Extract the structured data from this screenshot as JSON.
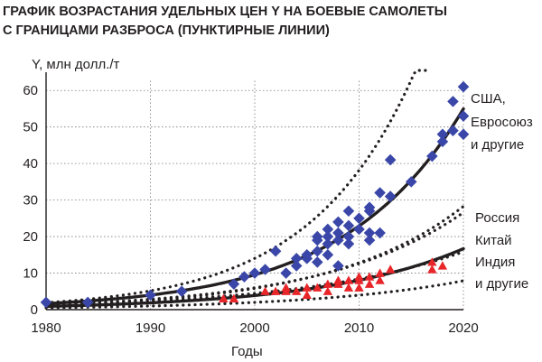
{
  "chart_data": {
    "type": "scatter",
    "title_lines": [
      "ГРАФИК ВОЗРАСТАНИЯ УДЕЛЬНЫХ ЦЕН Y НА БОЕВЫЕ САМОЛЕТЫ",
      "С ГРАНИЦАМИ РАЗБРОСА (ПУНКТИРНЫЕ ЛИНИИ)"
    ],
    "ylabel": "Y, млн долл./т",
    "xlabel": "Годы",
    "xlim": [
      1980,
      2020
    ],
    "ylim": [
      0,
      65
    ],
    "x_ticks": [
      "1980",
      "1990",
      "2000",
      "2010",
      "2020"
    ],
    "y_ticks": [
      "0",
      "10",
      "20",
      "30",
      "40",
      "50",
      "60"
    ],
    "grid": "dotted",
    "legend_placement": "right, next to curves",
    "colors": {
      "western": "#3a47a8",
      "eastern": "#e8262a",
      "curve": "#231f20"
    },
    "groups": [
      {
        "label_lines": [
          "США,",
          "Евросоюз",
          "и другие"
        ],
        "marker": "diamond",
        "color": "#3a47a8",
        "trend": {
          "a": 1.66,
          "b": 0.0875
        },
        "upper_bound": {
          "a": 1.9,
          "b": 0.1
        },
        "points": [
          [
            1980,
            2
          ],
          [
            1984,
            2
          ],
          [
            1990,
            4
          ],
          [
            1993,
            5
          ],
          [
            1998,
            7
          ],
          [
            1999,
            9
          ],
          [
            2000,
            10
          ],
          [
            2001,
            11
          ],
          [
            2002,
            16
          ],
          [
            2003,
            10
          ],
          [
            2004,
            12
          ],
          [
            2004,
            14
          ],
          [
            2005,
            14
          ],
          [
            2005,
            15
          ],
          [
            2006,
            13
          ],
          [
            2006,
            16
          ],
          [
            2006,
            19
          ],
          [
            2006,
            20
          ],
          [
            2007,
            15
          ],
          [
            2007,
            18
          ],
          [
            2007,
            20
          ],
          [
            2007,
            22
          ],
          [
            2008,
            12
          ],
          [
            2008,
            19
          ],
          [
            2008,
            21
          ],
          [
            2008,
            24
          ],
          [
            2009,
            18
          ],
          [
            2009,
            20
          ],
          [
            2009,
            23
          ],
          [
            2009,
            27
          ],
          [
            2010,
            22
          ],
          [
            2010,
            25
          ],
          [
            2011,
            19
          ],
          [
            2011,
            21
          ],
          [
            2011,
            27
          ],
          [
            2011,
            28
          ],
          [
            2012,
            21
          ],
          [
            2012,
            32
          ],
          [
            2013,
            31
          ],
          [
            2013,
            41
          ],
          [
            2015,
            35
          ],
          [
            2017,
            42
          ],
          [
            2018,
            46
          ],
          [
            2018,
            48
          ],
          [
            2019,
            49
          ],
          [
            2019,
            57
          ],
          [
            2020,
            48
          ],
          [
            2020,
            53
          ],
          [
            2020,
            61
          ]
        ]
      },
      {
        "label_lines": [
          "Россия",
          "Китай",
          "Индия",
          "и другие"
        ],
        "marker": "triangle",
        "color": "#e8262a",
        "trend": {
          "a": 0.9,
          "b": 0.073
        },
        "upper_bound": {
          "a": 1.2,
          "b": 0.079
        },
        "upper_bound_2": {
          "a": 1.35,
          "b": 0.0745
        },
        "points": [
          [
            1997,
            3
          ],
          [
            1998,
            3
          ],
          [
            2001,
            5
          ],
          [
            2002,
            5
          ],
          [
            2003,
            5
          ],
          [
            2003,
            6
          ],
          [
            2004,
            5
          ],
          [
            2005,
            4
          ],
          [
            2005,
            6
          ],
          [
            2006,
            6
          ],
          [
            2007,
            7
          ],
          [
            2007,
            5
          ],
          [
            2008,
            7
          ],
          [
            2008,
            8
          ],
          [
            2009,
            6
          ],
          [
            2009,
            8
          ],
          [
            2010,
            6
          ],
          [
            2010,
            8
          ],
          [
            2010,
            9
          ],
          [
            2011,
            7
          ],
          [
            2011,
            9
          ],
          [
            2012,
            10
          ],
          [
            2012,
            8
          ],
          [
            2013,
            11
          ],
          [
            2017,
            13
          ],
          [
            2017,
            11
          ],
          [
            2018,
            12
          ]
        ]
      }
    ],
    "lower_bound": {
      "a": 0.5,
      "b": 0.069
    },
    "lower_bound_2": {
      "a": 1.25,
      "b": 0.0635
    }
  }
}
